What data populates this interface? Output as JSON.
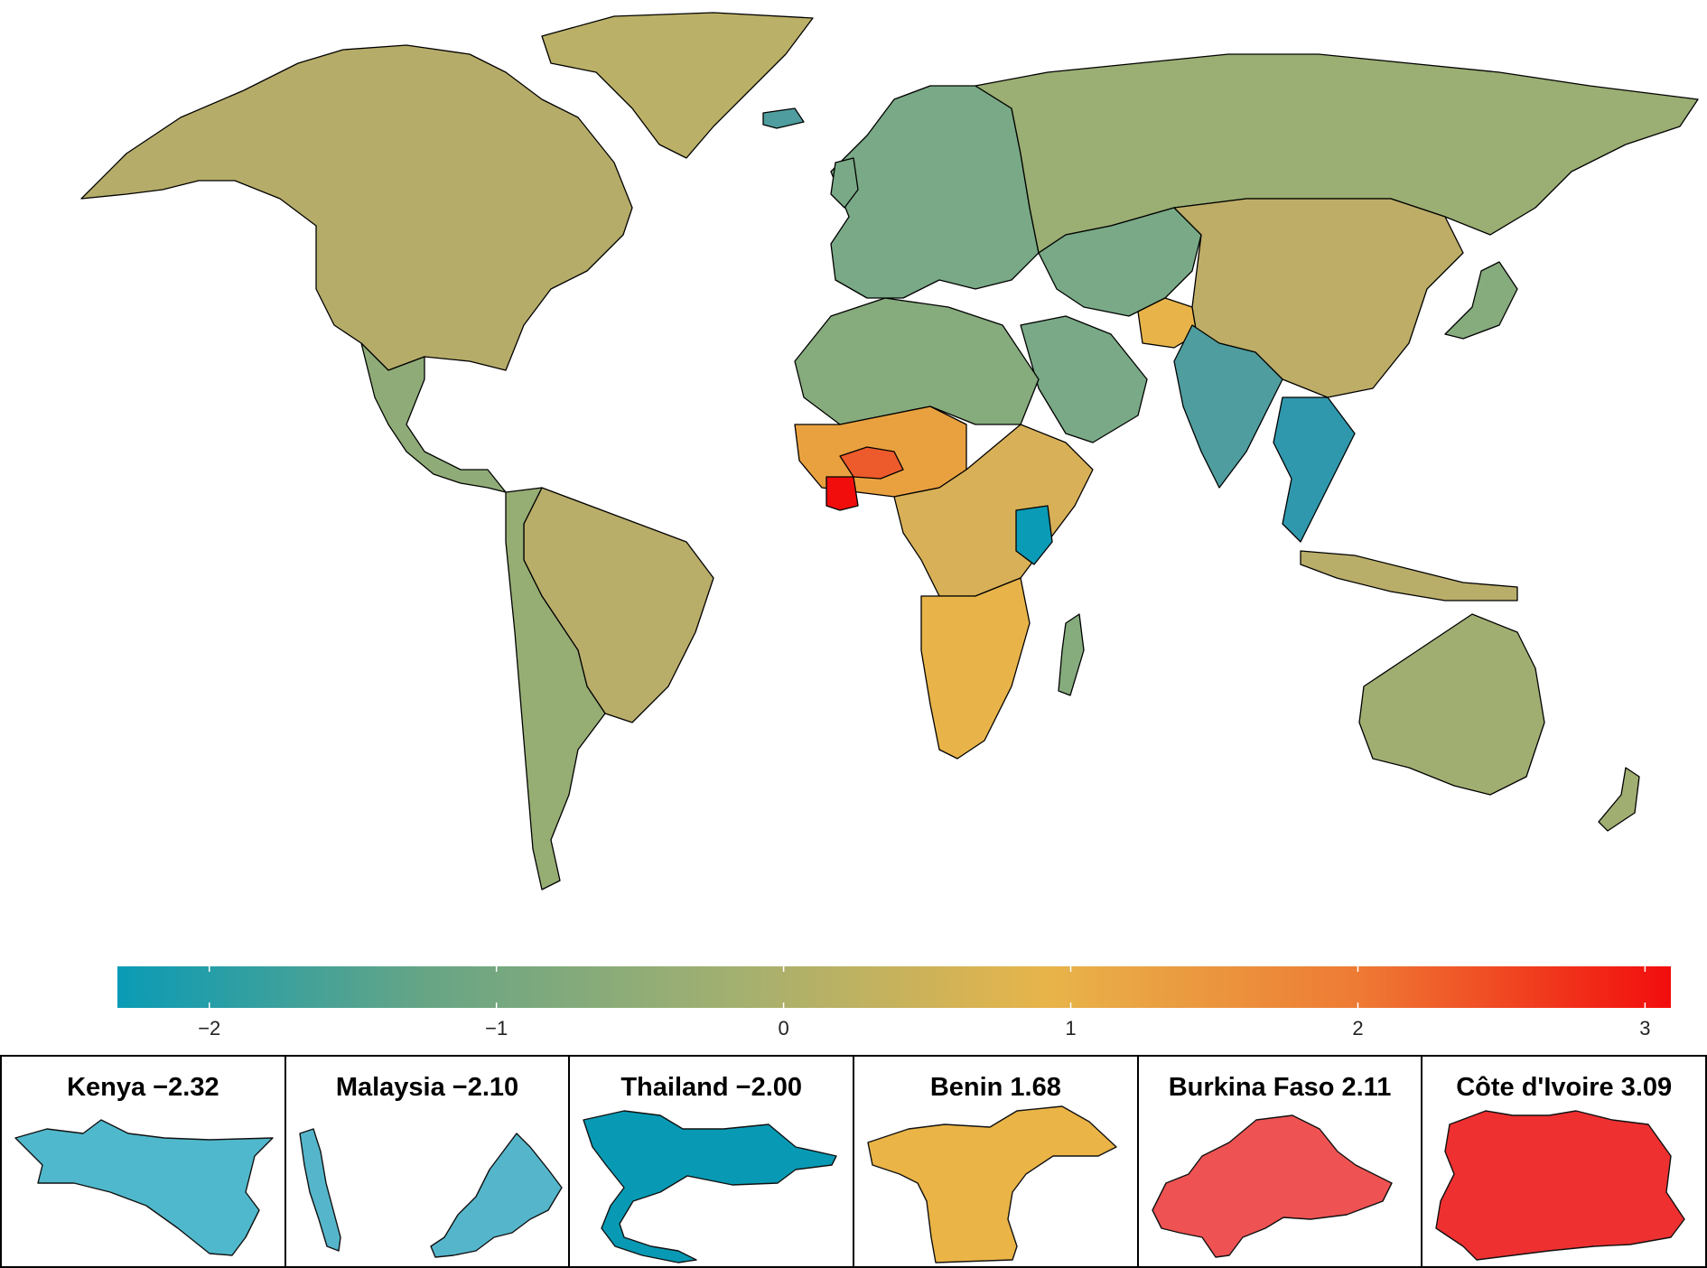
{
  "map": {
    "legend": {
      "min": -2.32,
      "max": 3.09,
      "ticks": [
        "−2",
        "−1",
        "0",
        "1",
        "2",
        "3"
      ],
      "tick_values": [
        -2,
        -1,
        0,
        1,
        2,
        3
      ],
      "colors": [
        "#0a9bb6",
        "#67a585",
        "#a4b070",
        "#e8b44a",
        "#ee7a34",
        "#f20d0d"
      ]
    },
    "region_colors": {
      "north_america": "#b6ac69",
      "greenland": "#bbb067",
      "mexico_central": "#8fac78",
      "south_america_east": "#b9ad6a",
      "south_america_west": "#96ad74",
      "europe": "#79a986",
      "russia": "#9bae73",
      "china": "#bead67",
      "india": "#4f9d9e",
      "north_africa": "#86ab7d",
      "west_africa_hot": "#e9a140",
      "cote_divoire": "#f20d0d",
      "burkina_faso": "#ed5a2c",
      "east_africa": "#d8b057",
      "kenya": "#0a9bb6",
      "southern_africa": "#e8b44a",
      "southeast_asia": "#2f98ad",
      "australia": "#a1ae72",
      "arabia": "#79a986",
      "afghanistan": "#e8b44a"
    }
  },
  "panels": [
    {
      "name": "Kenya",
      "value": "−2.32",
      "title": "Kenya −2.32",
      "color": "#50b8cc"
    },
    {
      "name": "Malaysia",
      "value": "−2.10",
      "title": "Malaysia −2.10",
      "color": "#55b6cb"
    },
    {
      "name": "Thailand",
      "value": "−2.00",
      "title": "Thailand −2.00",
      "color": "#089ab4"
    },
    {
      "name": "Benin",
      "value": "1.68",
      "title": "Benin 1.68",
      "color": "#eab447"
    },
    {
      "name": "Burkina Faso",
      "value": "2.11",
      "title": "Burkina Faso 2.11",
      "color": "#ef5252"
    },
    {
      "name": "Côte d'Ivoire",
      "value": "3.09",
      "title": "Côte d'Ivoire 3.09",
      "color": "#ee3030"
    }
  ]
}
